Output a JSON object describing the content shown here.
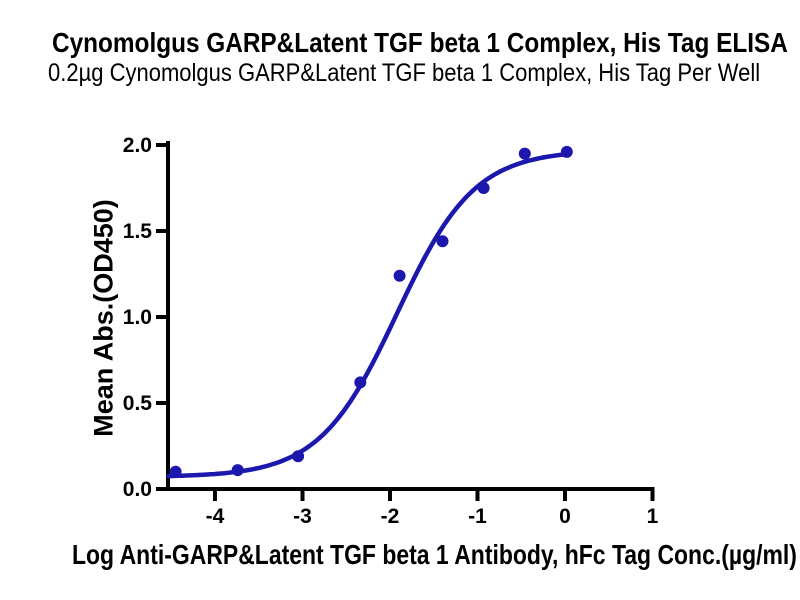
{
  "chart_data": {
    "type": "scatter",
    "title": "Cynomolgus GARP&Latent TGF beta 1 Complex, His Tag ELISA",
    "subtitle": "0.2µg Cynomolgus GARP&Latent TGF beta 1 Complex, His Tag Per Well",
    "xlabel": "Log Anti-GARP&Latent TGF beta 1 Antibody, hFc Tag Conc.(µg/ml)",
    "ylabel": "Mean Abs.(OD450)",
    "x": [
      -4.45,
      -3.74,
      -3.05,
      -2.34,
      -1.89,
      -1.4,
      -0.93,
      -0.46,
      0.02
    ],
    "y": [
      0.1,
      0.11,
      0.19,
      0.62,
      1.24,
      1.44,
      1.75,
      1.95,
      1.96
    ],
    "x_ticks": [
      -4,
      -3,
      -2,
      -1,
      0,
      1
    ],
    "x_tick_labels": [
      "-4",
      "-3",
      "-2",
      "-1",
      "0",
      "1"
    ],
    "y_ticks": [
      0,
      0.5,
      1,
      1.5,
      2
    ],
    "y_tick_labels": [
      "0.0",
      "0.5",
      "1.0",
      "1.5",
      "2.0"
    ],
    "xlim": [
      -4.54,
      1
    ],
    "ylim": [
      0,
      2
    ],
    "grid": false,
    "legend": null,
    "curve_fit": {
      "model": "4PL",
      "bottom": 0.07,
      "top": 1.97,
      "logEC50": -1.92,
      "hill": 0.98,
      "x_start": -4.53,
      "x_end": 0.02
    },
    "marker_color": "#1c18ae",
    "line_color": "#1c18ae",
    "axis_color": "#000000",
    "text_color": "#000000"
  }
}
